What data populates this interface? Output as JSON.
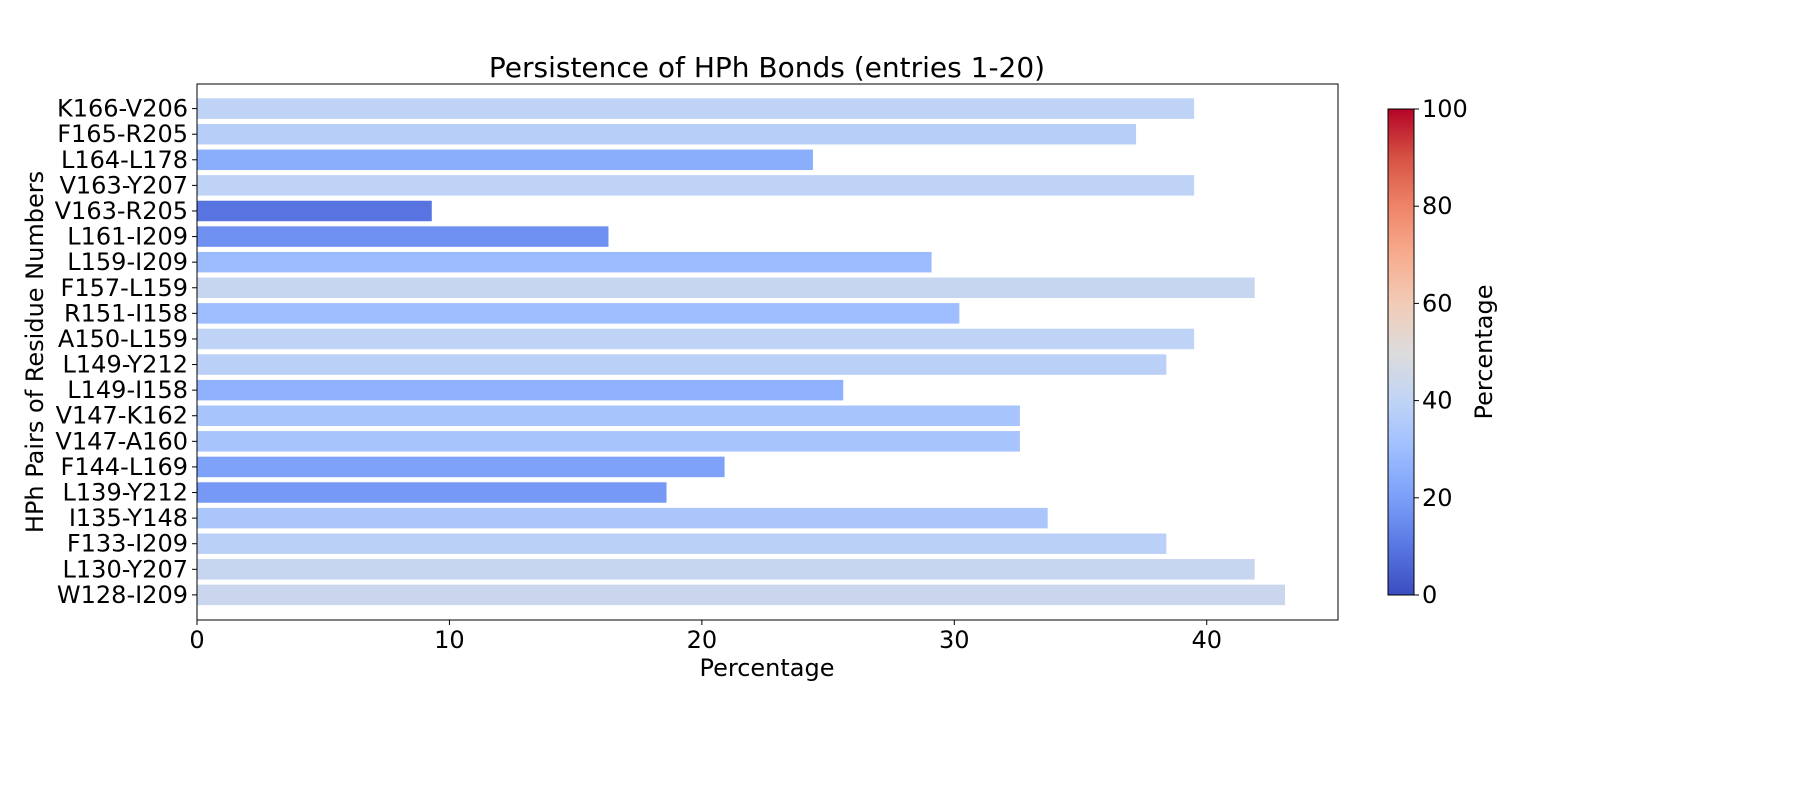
{
  "chart_data": {
    "type": "bar",
    "orientation": "horizontal",
    "title": "Persistence of HPh Bonds (entries 1-20)",
    "xlabel": "Percentage",
    "ylabel": "HPh Pairs of Residue Numbers",
    "categories": [
      "W128-I209",
      "L130-Y207",
      "F133-I209",
      "I135-Y148",
      "L139-Y212",
      "F144-L169",
      "V147-A160",
      "V147-K162",
      "L149-I158",
      "L149-Y212",
      "A150-L159",
      "R151-I158",
      "F157-L159",
      "L159-I209",
      "L161-I209",
      "V163-R205",
      "V163-Y207",
      "L164-L178",
      "F165-R205",
      "K166-V206"
    ],
    "values": [
      43.1,
      41.9,
      38.4,
      33.7,
      18.6,
      20.9,
      32.6,
      32.6,
      25.6,
      38.4,
      39.5,
      30.2,
      41.9,
      29.1,
      16.3,
      9.3,
      39.5,
      24.4,
      37.2,
      39.5
    ],
    "xlim": [
      0,
      45.2
    ],
    "xticks": [
      0,
      10,
      20,
      30,
      40
    ],
    "grid": false,
    "colormap": "coolwarm",
    "color_range": [
      0,
      100
    ],
    "colorbar": {
      "label": "Percentage",
      "ticks": [
        0,
        20,
        40,
        60,
        80,
        100
      ],
      "placement": "right"
    }
  }
}
